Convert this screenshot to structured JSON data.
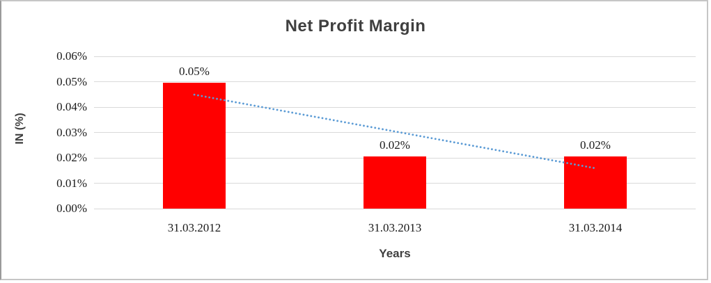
{
  "chart_data": {
    "type": "bar",
    "title": "Net Profit Margin",
    "xlabel": "Years",
    "ylabel": "IN (%)",
    "categories": [
      "31.03.2012",
      "31.03.2013",
      "31.03.2014"
    ],
    "values": [
      0.0496,
      0.0206,
      0.0206
    ],
    "data_labels": [
      "0.05%",
      "0.02%",
      "0.02%"
    ],
    "unit": "percent",
    "bar_color": "#ff0000",
    "ylim": [
      0,
      0.06
    ],
    "ytick_step": 0.01,
    "ytick_labels": [
      "0.00%",
      "0.01%",
      "0.02%",
      "0.03%",
      "0.04%",
      "0.05%",
      "0.06%"
    ],
    "gridlines": true,
    "gridline_color": "#d9d9d9",
    "legend_position": "none",
    "trendline": {
      "type": "linear",
      "style": "dotted",
      "color": "#5b9bd5",
      "start_value": 0.0449,
      "end_value": 0.0159
    }
  }
}
